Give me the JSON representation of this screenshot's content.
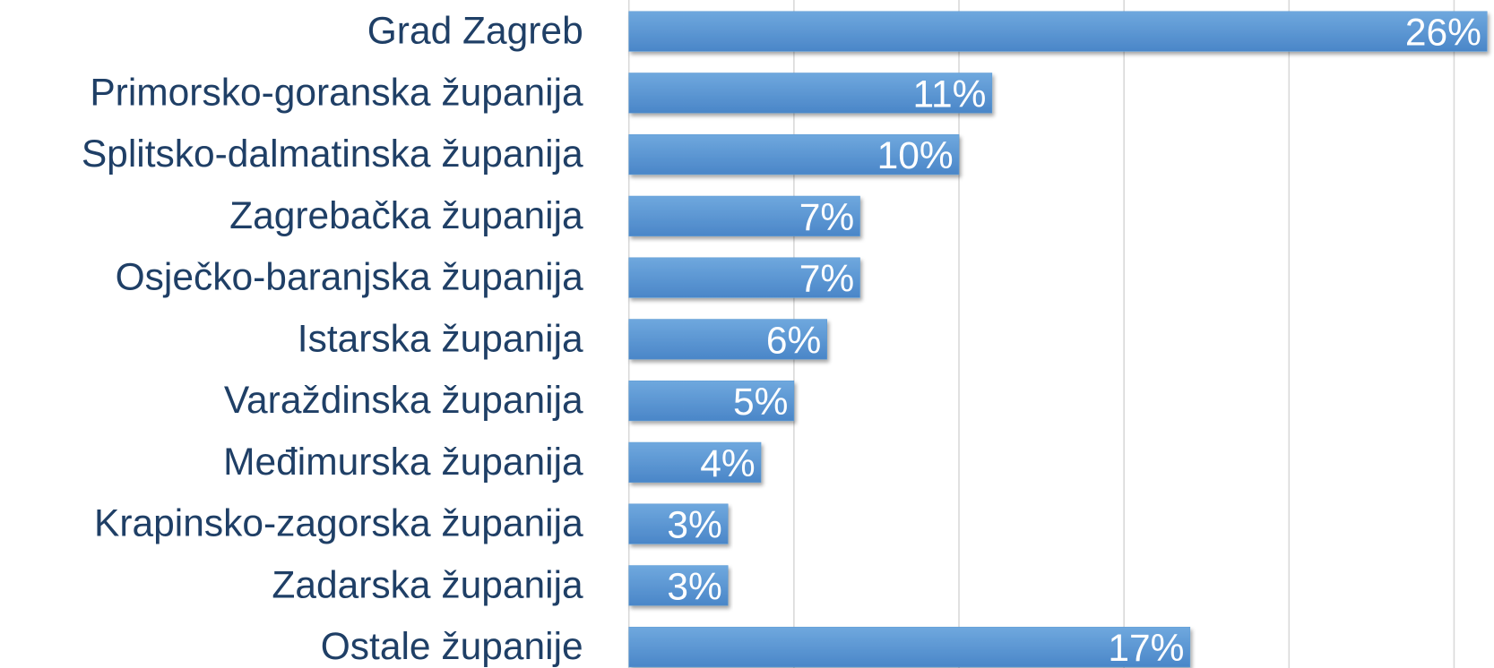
{
  "chart_data": {
    "type": "hbar",
    "categories": [
      "Grad Zagreb",
      "Primorsko-goranska županija",
      "Splitsko-dalmatinska županija",
      "Zagrebačka županija",
      "Osječko-baranjska županija",
      "Istarska županija",
      "Varaždinska županija",
      "Međimurska županija",
      "Krapinsko-zagorska županija",
      "Zadarska županija",
      "Ostale županije"
    ],
    "values": [
      26,
      11,
      10,
      7,
      7,
      6,
      5,
      4,
      3,
      3,
      17
    ],
    "value_labels": [
      "26%",
      "11%",
      "10%",
      "7%",
      "7%",
      "6%",
      "5%",
      "4%",
      "3%",
      "3%",
      "17%"
    ],
    "color": "#5b9bd5",
    "xlim": [
      0,
      26.2
    ],
    "xticks": [
      0,
      5,
      10,
      15,
      20,
      25
    ],
    "grid": true
  }
}
